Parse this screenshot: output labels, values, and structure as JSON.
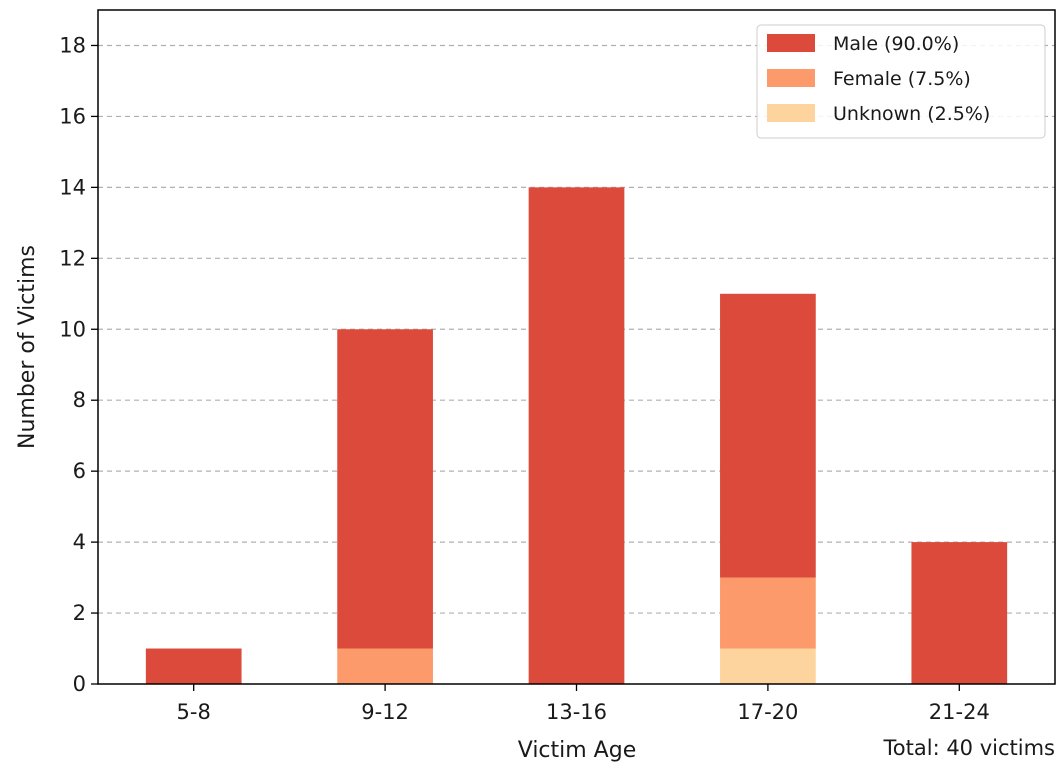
{
  "chart_data": {
    "type": "bar",
    "stacked": true,
    "categories": [
      "5-8",
      "9-12",
      "13-16",
      "17-20",
      "21-24"
    ],
    "series": [
      {
        "name": "Unknown (2.5%)",
        "values": [
          0,
          0,
          0,
          1,
          0
        ],
        "color": "#fdd49e"
      },
      {
        "name": "Female (7.5%)",
        "values": [
          0,
          1,
          0,
          2,
          0
        ],
        "color": "#fc9a6b"
      },
      {
        "name": "Male (90.0%)",
        "values": [
          1,
          9,
          14,
          8,
          4
        ],
        "color": "#db4a3a"
      }
    ],
    "xlabel": "Victim Age",
    "ylabel": "Number of Victims",
    "ylim": [
      0,
      19
    ],
    "yticks": [
      0,
      2,
      4,
      6,
      8,
      10,
      12,
      14,
      16,
      18
    ],
    "grid": "y-dashed",
    "legend_placement": "top-right",
    "annotation": "Total: 40 victims"
  }
}
